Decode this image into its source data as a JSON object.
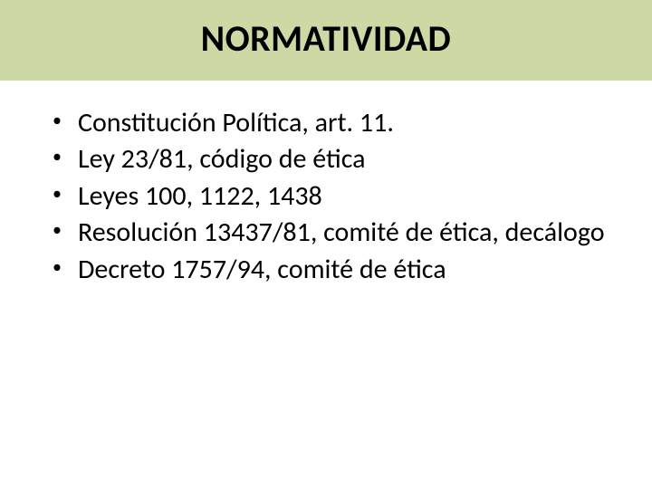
{
  "slide": {
    "title": "NORMATIVIDAD",
    "title_bg_color": "#ccd9a4",
    "title_color": "#000000",
    "title_fontsize": 40,
    "title_fontweight": "bold",
    "body_fontsize": 30,
    "body_color": "#000000",
    "background_color": "#ffffff",
    "bullets": [
      {
        "text": "Constitución Política, art. 11."
      },
      {
        "text": "Ley 23/81, código de ética"
      },
      {
        "text": "Leyes 100, 1122, 1438"
      },
      {
        "text": "Resolución 13437/81, comité de ética, decálogo"
      },
      {
        "text": "Decreto 1757/94, comité de ética"
      }
    ]
  }
}
